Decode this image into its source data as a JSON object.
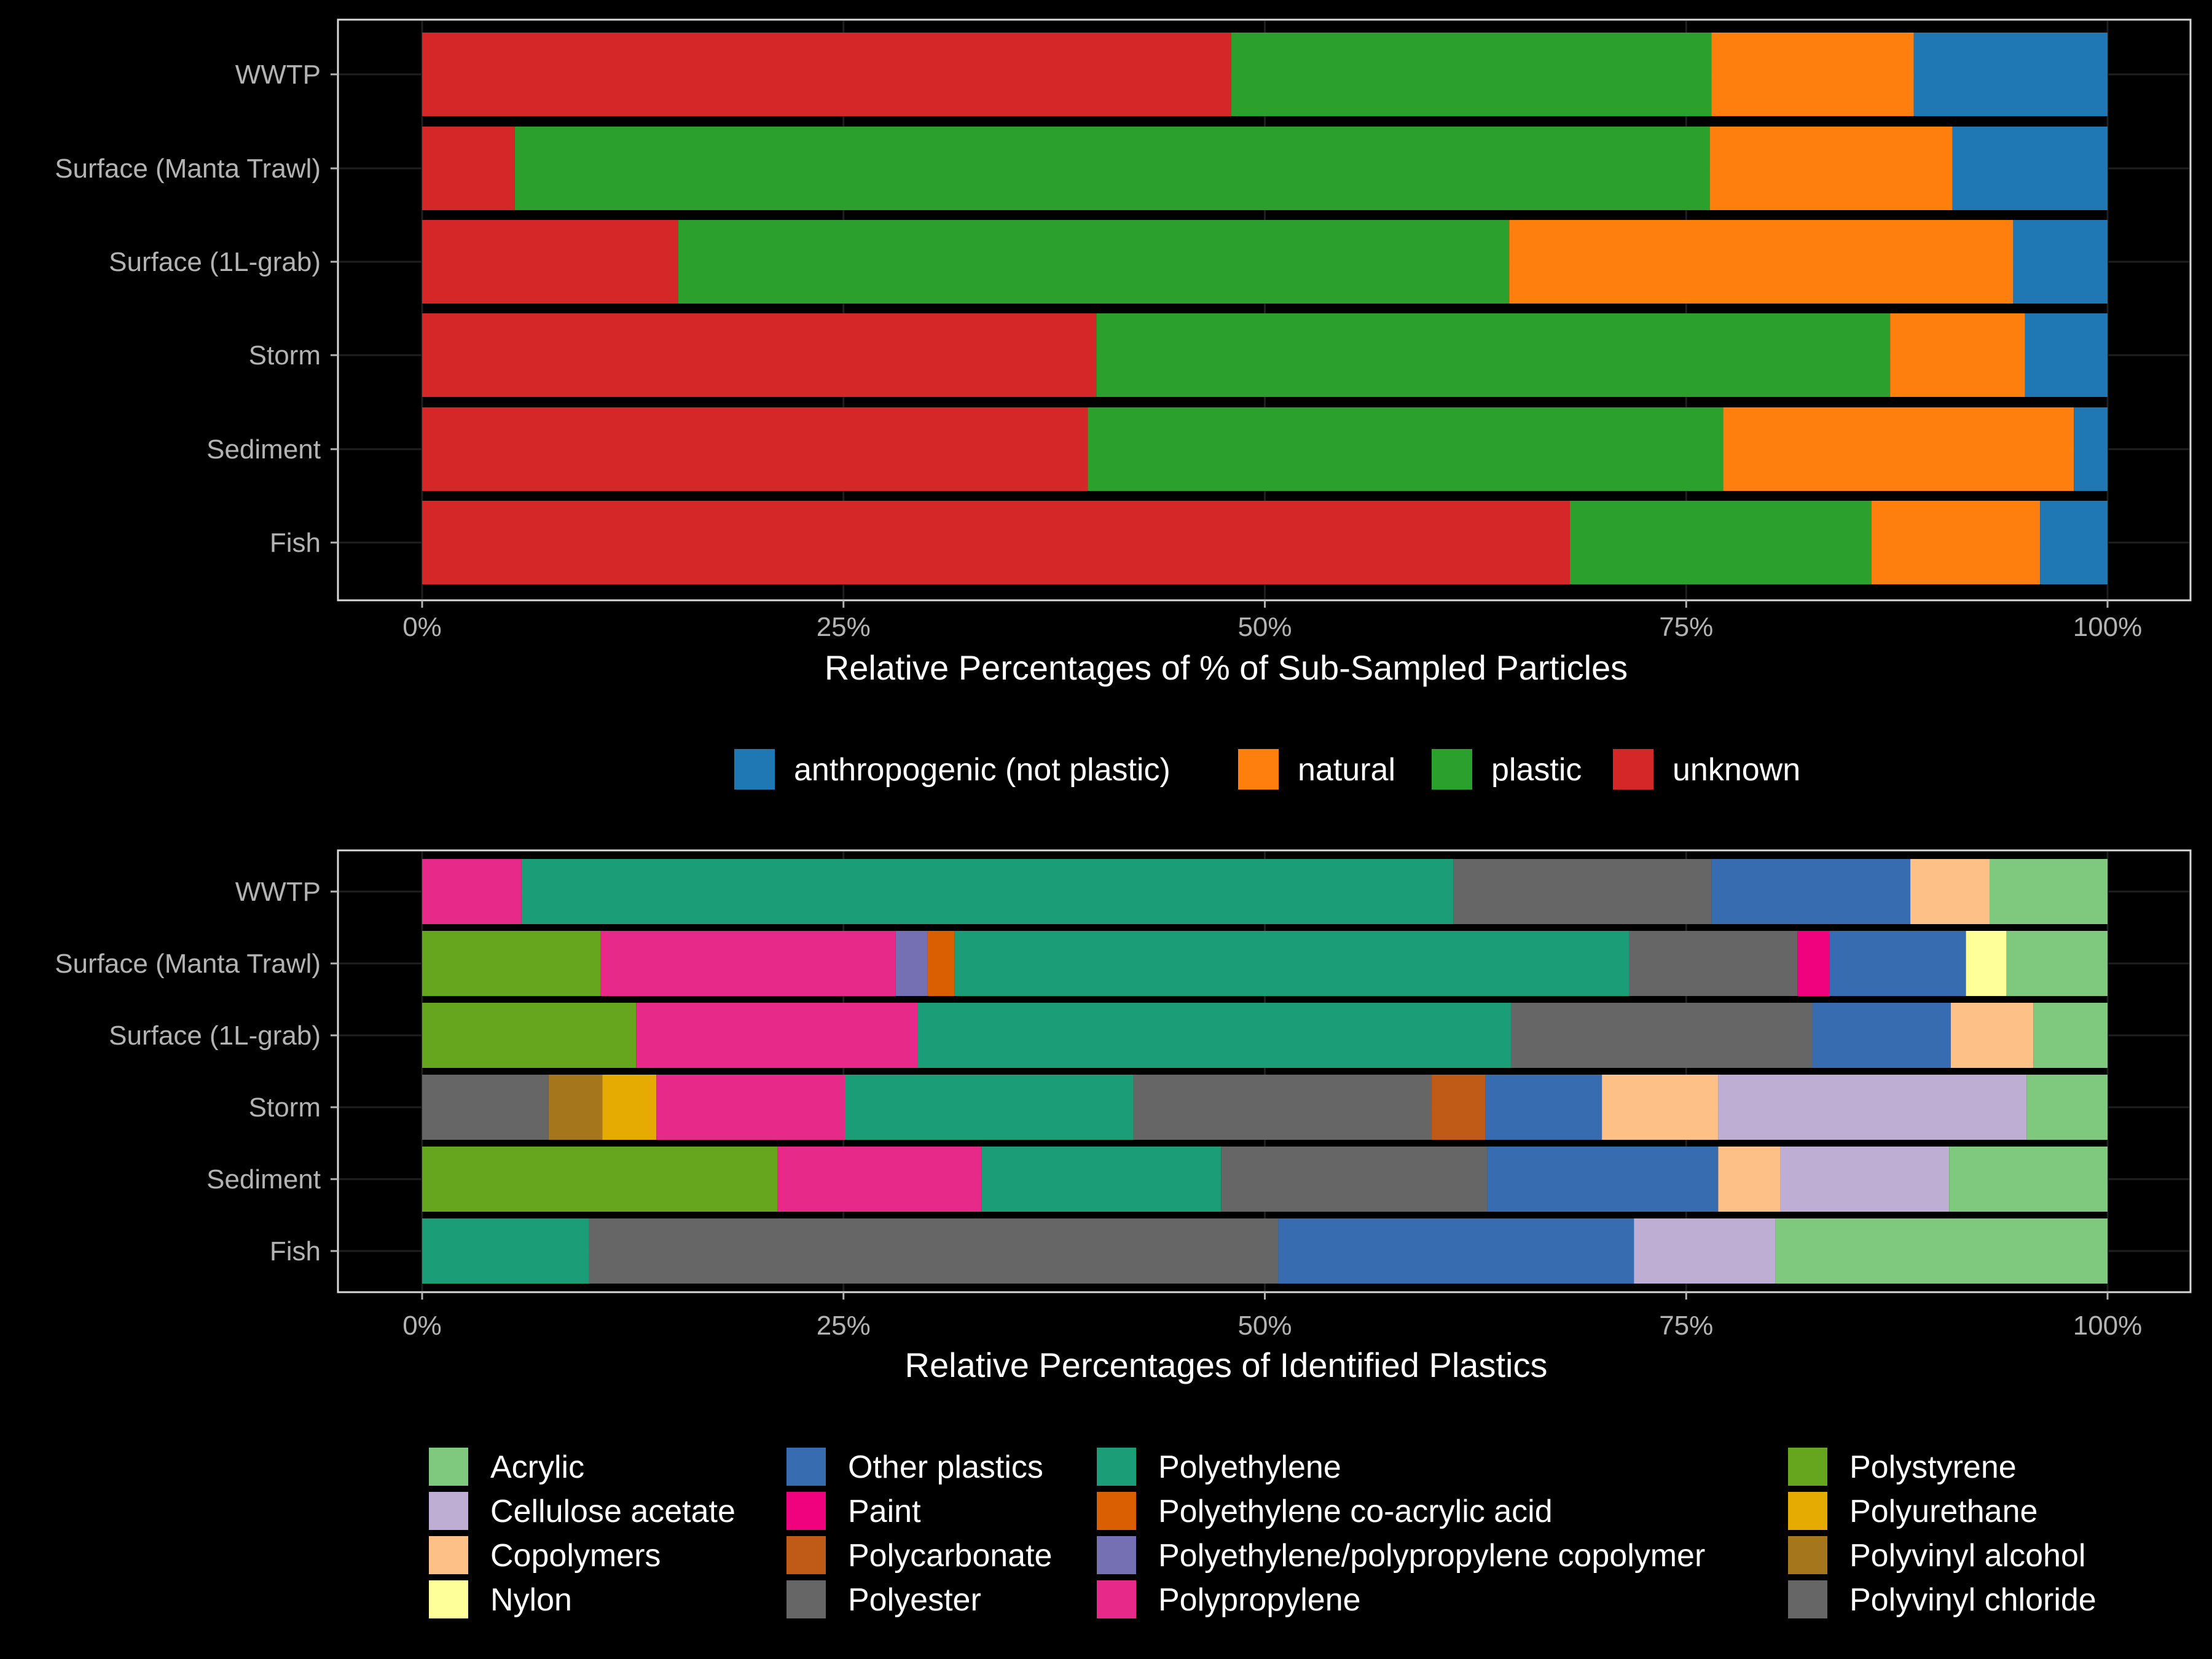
{
  "chart_data": [
    {
      "type": "bar",
      "orientation": "horizontal",
      "stacked": true,
      "xlabel": "Relative Percentages of % of Sub-Sampled Particles",
      "ylabel": "",
      "xlim": [
        0,
        100
      ],
      "x_ticks": [
        "0%",
        "25%",
        "50%",
        "75%",
        "100%"
      ],
      "x_tick_values": [
        0,
        25,
        50,
        75,
        100
      ],
      "categories": [
        "WWTP",
        "Surface (Manta Trawl)",
        "Surface (1L-grab)",
        "Storm",
        "Sediment",
        "Fish"
      ],
      "series": [
        {
          "name": "unknown",
          "color": "#D62728",
          "values": [
            48.0,
            5.5,
            15.2,
            40.0,
            39.5,
            68.1
          ]
        },
        {
          "name": "plastic",
          "color": "#2CA02C",
          "values": [
            28.5,
            70.9,
            49.3,
            47.1,
            37.7,
            17.9
          ]
        },
        {
          "name": "natural",
          "color": "#FF7F0E",
          "values": [
            12.0,
            14.4,
            29.9,
            8.0,
            20.8,
            10.0
          ]
        },
        {
          "name": "anthropogenic (not plastic)",
          "color": "#1F77B4",
          "values": [
            11.5,
            9.2,
            5.6,
            4.9,
            2.0,
            4.0
          ]
        }
      ],
      "legend": {
        "position": "bottom",
        "entries": [
          "anthropogenic (not plastic)",
          "natural",
          "plastic",
          "unknown"
        ]
      },
      "grid": true
    },
    {
      "type": "bar",
      "orientation": "horizontal",
      "stacked": true,
      "xlabel": "Relative Percentages of Identified Plastics",
      "ylabel": "",
      "xlim": [
        0,
        100
      ],
      "x_ticks": [
        "0%",
        "25%",
        "50%",
        "75%",
        "100%"
      ],
      "x_tick_values": [
        0,
        25,
        50,
        75,
        100
      ],
      "categories": [
        "WWTP",
        "Surface (Manta Trawl)",
        "Surface (1L-grab)",
        "Storm",
        "Sediment",
        "Fish"
      ],
      "series": [
        {
          "name": "Polyvinyl chloride",
          "color": "#666666",
          "values": [
            0,
            0,
            0,
            7.5,
            0,
            0
          ]
        },
        {
          "name": "Polyvinyl alcohol",
          "color": "#A6761D",
          "values": [
            0,
            0,
            0,
            3.2,
            0,
            0
          ]
        },
        {
          "name": "Polyurethane",
          "color": "#E6AB02",
          "values": [
            0,
            0,
            0,
            3.2,
            0,
            0
          ]
        },
        {
          "name": "Polystyrene",
          "color": "#66A61E",
          "values": [
            0,
            10.6,
            12.7,
            0,
            21.1,
            0
          ]
        },
        {
          "name": "Polypropylene",
          "color": "#E7298A",
          "values": [
            5.9,
            17.5,
            16.7,
            11.2,
            12.1,
            0
          ]
        },
        {
          "name": "Polyethylene/polypropylene copolymer",
          "color": "#7570B3",
          "values": [
            0,
            1.9,
            0,
            0,
            0,
            0
          ]
        },
        {
          "name": "Polyethylene co-acrylic acid",
          "color": "#D95F02",
          "values": [
            0,
            1.6,
            0,
            0,
            0,
            0
          ]
        },
        {
          "name": "Polyethylene",
          "color": "#1B9E77",
          "values": [
            55.3,
            40.0,
            35.2,
            17.1,
            14.2,
            9.9
          ]
        },
        {
          "name": "Polyester",
          "color": "#666666",
          "values": [
            15.3,
            10.0,
            17.9,
            17.7,
            15.8,
            40.9
          ]
        },
        {
          "name": "Polycarbonate",
          "color": "#BF5B17",
          "values": [
            0,
            0,
            0,
            3.2,
            0,
            0
          ]
        },
        {
          "name": "Paint",
          "color": "#F0027F",
          "values": [
            0,
            1.9,
            0,
            0,
            0,
            0
          ]
        },
        {
          "name": "Other plastics",
          "color": "#386CB0",
          "values": [
            11.8,
            8.1,
            8.2,
            6.9,
            13.7,
            21.1
          ]
        },
        {
          "name": "Nylon",
          "color": "#FFFF99",
          "values": [
            0,
            2.4,
            0,
            0,
            0,
            0
          ]
        },
        {
          "name": "Copolymers",
          "color": "#FDC086",
          "values": [
            4.7,
            0,
            4.9,
            6.9,
            3.7,
            0
          ]
        },
        {
          "name": "Cellulose acetate",
          "color": "#BEAED4",
          "values": [
            0,
            0,
            0,
            18.3,
            10.0,
            8.4
          ]
        },
        {
          "name": "Acrylic",
          "color": "#7FC97F",
          "values": [
            7.0,
            6.0,
            4.4,
            4.8,
            9.4,
            19.7
          ]
        }
      ],
      "legend": {
        "position": "bottom",
        "columns": [
          [
            "Acrylic",
            "Cellulose acetate",
            "Copolymers",
            "Nylon"
          ],
          [
            "Other plastics",
            "Paint",
            "Polycarbonate",
            "Polyester"
          ],
          [
            "Polyethylene",
            "Polyethylene co-acrylic acid",
            "Polyethylene/polypropylene copolymer",
            "Polypropylene"
          ],
          [
            "Polystyrene",
            "Polyurethane",
            "Polyvinyl alcohol",
            "Polyvinyl chloride"
          ]
        ]
      },
      "grid": true
    }
  ]
}
